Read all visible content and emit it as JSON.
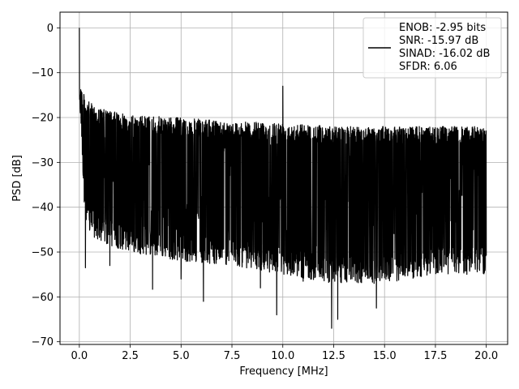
{
  "chart_data": {
    "type": "line",
    "xlabel": "Frequency [MHz]",
    "ylabel": "PSD [dB]",
    "xlim": [
      -0.95,
      21.05
    ],
    "ylim": [
      -70.6,
      3.5
    ],
    "xticks": [
      0.0,
      2.5,
      5.0,
      7.5,
      10.0,
      12.5,
      15.0,
      17.5,
      20.0
    ],
    "xtick_labels": [
      "0.0",
      "2.5",
      "5.0",
      "7.5",
      "10.0",
      "12.5",
      "15.0",
      "17.5",
      "20.0"
    ],
    "yticks": [
      0,
      -10,
      -20,
      -30,
      -40,
      -50,
      -60,
      -70
    ],
    "ytick_labels": [
      "0",
      "−10",
      "−20",
      "−30",
      "−40",
      "−50",
      "−60",
      "−70"
    ],
    "grid": true,
    "legend_placement": "top-right",
    "series": [
      {
        "color": "#000000",
        "x_range": [
          0.0,
          20.0
        ],
        "peaks": [
          {
            "x": 0.0,
            "y": 0.0
          },
          {
            "x": 10.0,
            "y": -13.0
          }
        ],
        "upper_envelope": [
          [
            0.05,
            -12
          ],
          [
            0.3,
            -16
          ],
          [
            1.0,
            -18
          ],
          [
            2.5,
            -19.5
          ],
          [
            5.0,
            -20
          ],
          [
            7.5,
            -21
          ],
          [
            10.0,
            -21
          ],
          [
            12.5,
            -22
          ],
          [
            15.0,
            -22
          ],
          [
            17.5,
            -22
          ],
          [
            20.0,
            -22
          ]
        ],
        "lower_envelope": [
          [
            0.05,
            -20
          ],
          [
            0.3,
            -45
          ],
          [
            1.0,
            -48
          ],
          [
            2.5,
            -50
          ],
          [
            5.0,
            -52
          ],
          [
            7.5,
            -53
          ],
          [
            10.0,
            -55
          ],
          [
            12.5,
            -57
          ],
          [
            15.0,
            -57
          ],
          [
            17.5,
            -55
          ],
          [
            20.0,
            -55
          ]
        ],
        "deep_dips": [
          {
            "x": 0.3,
            "y": -53.5
          },
          {
            "x": 3.6,
            "y": -58.3
          },
          {
            "x": 6.1,
            "y": -61.0
          },
          {
            "x": 9.7,
            "y": -64.0
          },
          {
            "x": 12.4,
            "y": -67.0
          },
          {
            "x": 12.7,
            "y": -65.0
          },
          {
            "x": 14.6,
            "y": -62.5
          },
          {
            "x": 1.5,
            "y": -53.0
          },
          {
            "x": 5.0,
            "y": -56.0
          },
          {
            "x": 8.9,
            "y": -58.0
          },
          {
            "x": 11.0,
            "y": -56.5
          }
        ]
      }
    ],
    "legend": [
      "ENOB: -2.95 bits",
      "SNR: -15.97 dB",
      "SINAD: -16.02 dB",
      "SFDR: 6.06"
    ]
  }
}
